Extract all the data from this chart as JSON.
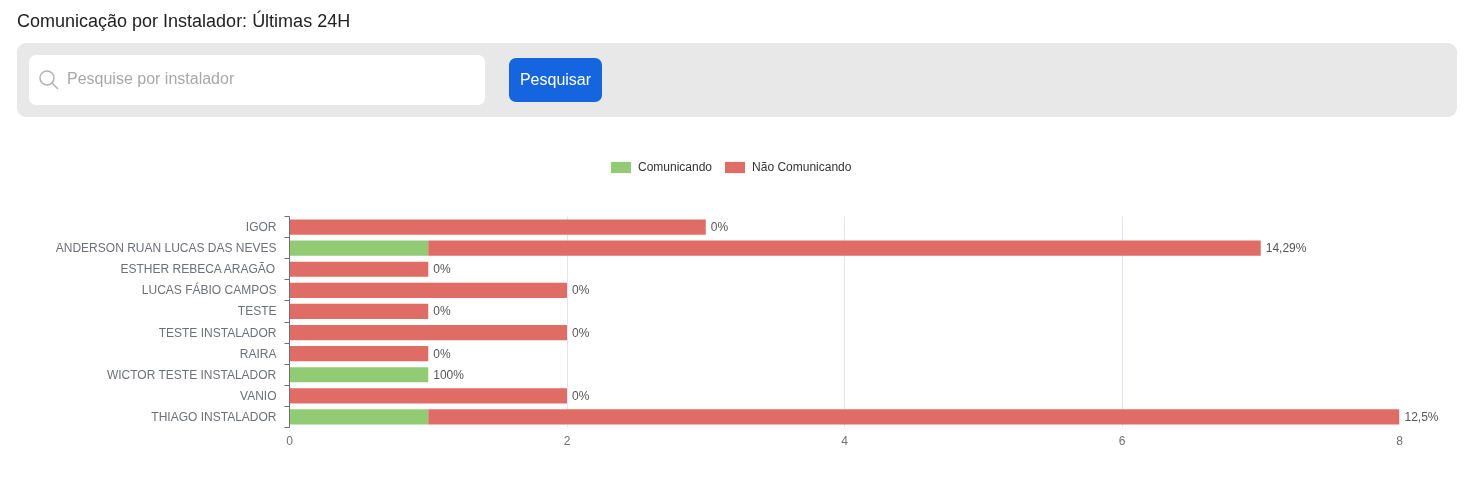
{
  "chart_data": {
    "type": "bar",
    "title": "Comunicação por Instalador: Últimas 24H",
    "annotations": [
      "Pesquise por instalador",
      "Pesquisar",
      {
        "text": "0%",
        "x": 3,
        "y": "IGOR"
      },
      {
        "text": "14,29%",
        "x": 7,
        "y": "ANDERSON RUAN LUCAS DAS NEVES"
      },
      {
        "text": "0%",
        "x": 1,
        "y": "ESTHER REBECA ARAGÃO"
      },
      {
        "text": "0%",
        "x": 2,
        "y": "LUCAS FÁBIO CAMPOS"
      },
      {
        "text": "0%",
        "x": 1,
        "y": "TESTE"
      },
      {
        "text": "0%",
        "x": 2,
        "y": "TESTE INSTALADOR"
      },
      {
        "text": "0%",
        "x": 1,
        "y": "RAIRA"
      },
      {
        "text": "100%",
        "x": 1,
        "y": "WICTOR TESTE INSTALADOR"
      },
      {
        "text": "0%",
        "x": 2,
        "y": "VANIO"
      },
      {
        "text": "12,5%",
        "x": 8,
        "y": "THIAGO INSTALADOR"
      }
    ],
    "categories": [
      "IGOR",
      "ANDERSON RUAN LUCAS DAS NEVES",
      "ESTHER REBECA ARAGÃO",
      "LUCAS FÁBIO CAMPOS",
      "TESTE",
      "TESTE INSTALADOR",
      "RAIRA",
      "WICTOR TESTE INSTALADOR",
      "VANIO",
      "THIAGO INSTALADOR"
    ],
    "series": [
      {
        "name": "Comunicando",
        "color": "#91cc75",
        "values": [
          0,
          1,
          0,
          0,
          0,
          0,
          0,
          1,
          0,
          1
        ]
      },
      {
        "name": "Não Comunicando",
        "color": "#e06c66",
        "values": [
          3,
          6,
          1,
          2,
          1,
          2,
          1,
          0,
          2,
          7
        ]
      }
    ],
    "stacked": true,
    "orientation": "horizontal",
    "xlim": [
      0,
      8
    ],
    "xticks": [
      0,
      2,
      4,
      6,
      8
    ],
    "grid": "x",
    "legend": "top"
  }
}
